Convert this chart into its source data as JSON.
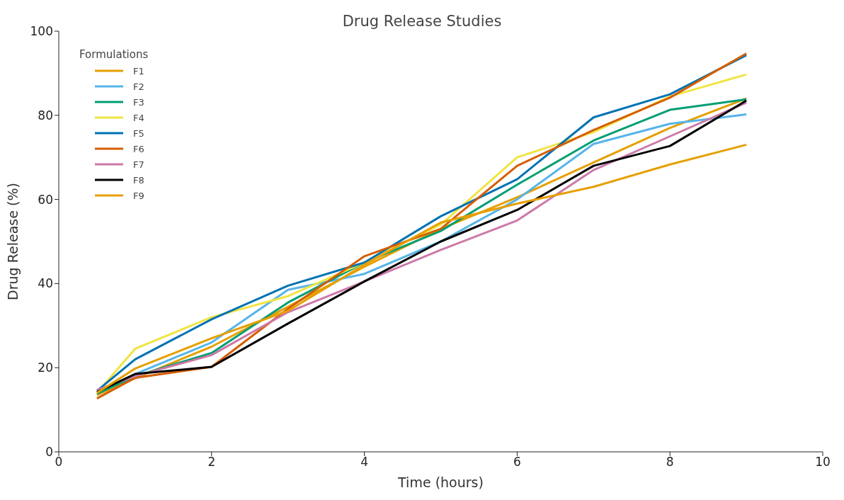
{
  "chart_data": {
    "type": "line",
    "title": "Drug Release Studies",
    "xlabel": "Time (hours)",
    "ylabel": "Drug Release (%)",
    "legend_title": "Formulations",
    "x": [
      0.5,
      1,
      2,
      3,
      4,
      5,
      6,
      7,
      8,
      9
    ],
    "series": [
      {
        "name": "F1",
        "color": "#e69f00",
        "values": [
          13.5,
          17.5,
          25,
          34.5,
          44,
          53,
          60.5,
          68.8,
          77,
          84
        ]
      },
      {
        "name": "F2",
        "color": "#56b4e9",
        "values": [
          14,
          18.5,
          26,
          38.5,
          42.3,
          50,
          60,
          73.2,
          78,
          80.2
        ]
      },
      {
        "name": "F3",
        "color": "#009e73",
        "values": [
          13.8,
          18,
          23.5,
          35.5,
          45,
          52.5,
          63.5,
          74,
          81.3,
          83.8
        ]
      },
      {
        "name": "F4",
        "color": "#f0e442",
        "values": [
          14,
          24.5,
          32,
          37,
          45,
          54,
          70,
          76,
          84.5,
          89.7
        ]
      },
      {
        "name": "F5",
        "color": "#0072b2",
        "values": [
          14.5,
          22,
          31.5,
          39.5,
          45,
          56,
          64.8,
          79.5,
          85,
          94.3
        ]
      },
      {
        "name": "F6",
        "color": "#d55e00",
        "values": [
          12.7,
          17.6,
          20.2,
          34,
          46.5,
          53,
          68,
          76.5,
          84.2,
          94.7
        ]
      },
      {
        "name": "F7",
        "color": "#cc79a7",
        "values": [
          14.7,
          18,
          23,
          33.2,
          40.5,
          48,
          55,
          67,
          75,
          83
        ]
      },
      {
        "name": "F8",
        "color": "#000000",
        "values": [
          14.2,
          18.5,
          20.2,
          30.5,
          40.5,
          50,
          57.5,
          68,
          72.7,
          83.5
        ]
      },
      {
        "name": "F9",
        "color": "#e69f00",
        "values": [
          14,
          19.8,
          27,
          33.5,
          44.5,
          54.5,
          59,
          63,
          68.3,
          73
        ]
      }
    ],
    "xlim": [
      0,
      10
    ],
    "xticks": [
      0,
      2,
      4,
      6,
      8,
      10
    ],
    "ylim": [
      0,
      100
    ],
    "yticks": [
      0,
      20,
      40,
      60,
      80,
      100
    ],
    "grid": false,
    "legend": "top left",
    "marker": "none",
    "line_style": "solid"
  }
}
